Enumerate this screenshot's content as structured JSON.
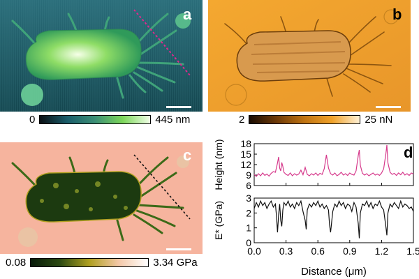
{
  "panels": {
    "a": {
      "letter": "a",
      "colorbar": {
        "min_label": "0",
        "max_label": "445 nm",
        "colors": [
          "#0a0f14",
          "#1a5d6a",
          "#3c8f76",
          "#7cd65a",
          "#f0ffe6"
        ]
      },
      "line_color": "#e0298e"
    },
    "b": {
      "letter": "b",
      "colorbar": {
        "min_label": "2",
        "max_label": "25 nN",
        "colors": [
          "#1a0c02",
          "#6e3a08",
          "#c07412",
          "#f0a22a",
          "#fff1d6"
        ]
      }
    },
    "c": {
      "letter": "c",
      "colorbar": {
        "min_label": "0.08",
        "max_label": "3.34 GPa",
        "colors": [
          "#071a09",
          "#2c4a12",
          "#b0a020",
          "#f4c8a8",
          "#ffffff"
        ]
      },
      "line_color": "#111111"
    },
    "d": {
      "letter": "d"
    }
  },
  "chart_data": [
    {
      "type": "line",
      "ylabel": "Height (nm)",
      "ylim": [
        6,
        18
      ],
      "yticks": [
        "6",
        "9",
        "12",
        "15",
        "18"
      ],
      "xlim": [
        0,
        1.5
      ],
      "color": "#d63a8c",
      "x": [
        0.0,
        0.02,
        0.04,
        0.06,
        0.08,
        0.1,
        0.12,
        0.14,
        0.16,
        0.18,
        0.2,
        0.22,
        0.23,
        0.24,
        0.25,
        0.26,
        0.27,
        0.28,
        0.3,
        0.32,
        0.34,
        0.36,
        0.38,
        0.4,
        0.42,
        0.44,
        0.46,
        0.48,
        0.5,
        0.52,
        0.54,
        0.56,
        0.58,
        0.6,
        0.62,
        0.64,
        0.66,
        0.68,
        0.7,
        0.72,
        0.74,
        0.76,
        0.78,
        0.8,
        0.82,
        0.84,
        0.86,
        0.88,
        0.9,
        0.92,
        0.94,
        0.96,
        0.98,
        0.99,
        1.0,
        1.02,
        1.04,
        1.06,
        1.08,
        1.1,
        1.12,
        1.14,
        1.16,
        1.18,
        1.2,
        1.22,
        1.24,
        1.25,
        1.26,
        1.28,
        1.3,
        1.32,
        1.34,
        1.36,
        1.38,
        1.4,
        1.42,
        1.44,
        1.46,
        1.48,
        1.5
      ],
      "y": [
        9.2,
        8.6,
        9.4,
        8.8,
        9.6,
        8.9,
        9.3,
        8.7,
        9.5,
        10.0,
        9.8,
        12.5,
        14.2,
        11.0,
        10.2,
        12.6,
        11.5,
        9.8,
        9.2,
        8.9,
        9.6,
        8.8,
        9.4,
        9.0,
        9.3,
        10.4,
        9.1,
        11.2,
        9.2,
        8.8,
        9.4,
        9.0,
        9.6,
        8.9,
        9.5,
        9.2,
        10.8,
        14.8,
        11.0,
        9.4,
        9.0,
        9.6,
        8.8,
        9.2,
        9.8,
        9.0,
        9.4,
        8.9,
        9.6,
        9.2,
        9.0,
        10.2,
        14.6,
        16.2,
        11.8,
        9.5,
        9.0,
        9.4,
        8.8,
        9.2,
        9.6,
        9.0,
        9.3,
        8.9,
        9.6,
        10.8,
        15.0,
        17.6,
        12.5,
        9.8,
        9.2,
        9.5,
        8.9,
        9.6,
        9.1,
        9.8,
        9.0,
        9.4,
        8.9,
        9.6,
        9.3
      ]
    },
    {
      "type": "line",
      "ylabel": "E* (GPa)",
      "ylim": [
        0,
        3
      ],
      "yticks": [
        "0",
        "1",
        "2",
        "3"
      ],
      "xlabel": "Distance (μm)",
      "xlim": [
        0,
        1.5
      ],
      "xticks": [
        "0.0",
        "0.3",
        "0.6",
        "0.9",
        "1.2",
        "1.5"
      ],
      "color": "#111111",
      "x": [
        0.0,
        0.02,
        0.04,
        0.06,
        0.08,
        0.1,
        0.12,
        0.14,
        0.16,
        0.18,
        0.2,
        0.21,
        0.22,
        0.23,
        0.24,
        0.25,
        0.26,
        0.27,
        0.28,
        0.3,
        0.32,
        0.34,
        0.36,
        0.38,
        0.4,
        0.42,
        0.44,
        0.46,
        0.48,
        0.49,
        0.5,
        0.52,
        0.54,
        0.56,
        0.58,
        0.6,
        0.62,
        0.64,
        0.66,
        0.68,
        0.7,
        0.71,
        0.72,
        0.74,
        0.76,
        0.78,
        0.8,
        0.82,
        0.84,
        0.86,
        0.88,
        0.9,
        0.92,
        0.94,
        0.96,
        0.98,
        0.99,
        1.0,
        1.02,
        1.04,
        1.06,
        1.08,
        1.1,
        1.12,
        1.14,
        1.16,
        1.18,
        1.2,
        1.22,
        1.24,
        1.25,
        1.26,
        1.28,
        1.3,
        1.32,
        1.34,
        1.36,
        1.38,
        1.4,
        1.42,
        1.44,
        1.46,
        1.48,
        1.5
      ],
      "y": [
        2.3,
        2.7,
        2.4,
        2.8,
        2.5,
        2.7,
        2.3,
        2.6,
        2.8,
        2.4,
        2.6,
        1.8,
        0.7,
        1.9,
        2.6,
        1.5,
        1.1,
        2.2,
        2.7,
        2.5,
        2.8,
        2.4,
        2.6,
        2.3,
        2.7,
        2.5,
        2.8,
        2.1,
        1.5,
        0.9,
        2.2,
        2.6,
        2.4,
        2.7,
        2.5,
        2.8,
        2.4,
        2.6,
        2.3,
        2.5,
        2.2,
        1.2,
        0.7,
        2.1,
        2.6,
        2.4,
        2.8,
        2.5,
        2.7,
        2.3,
        2.6,
        2.5,
        2.1,
        2.7,
        2.4,
        1.3,
        0.3,
        2.0,
        2.6,
        2.5,
        2.8,
        2.4,
        2.7,
        2.3,
        2.6,
        2.5,
        2.8,
        2.4,
        2.2,
        1.1,
        0.5,
        2.0,
        2.6,
        2.4,
        2.7,
        2.5,
        2.3,
        2.8,
        2.4,
        2.6,
        2.5,
        2.3,
        2.4,
        2.1
      ]
    }
  ]
}
